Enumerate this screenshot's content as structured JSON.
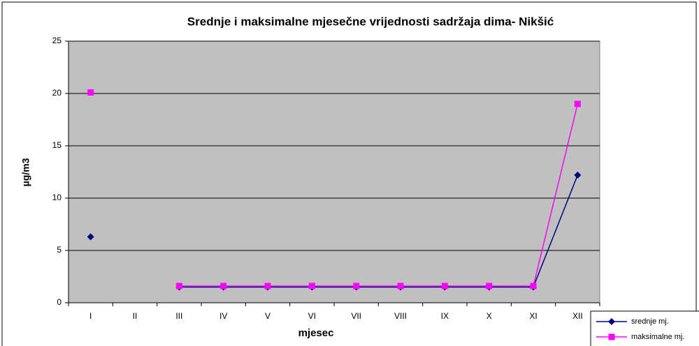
{
  "chart_data": {
    "type": "line",
    "title": "Srednje i maksimalne mjesečne vrijednosti sadržaja dima- Nikšić",
    "x_label": "mjesec",
    "y_label": "µg/m3",
    "categories": [
      "I",
      "II",
      "III",
      "IV",
      "V",
      "VI",
      "VII",
      "VIII",
      "IX",
      "X",
      "XI",
      "XII"
    ],
    "series": [
      {
        "name": "srednje mj.",
        "color": "#000080",
        "marker": "diamond",
        "values": [
          6.3,
          null,
          1.5,
          1.5,
          1.5,
          1.5,
          1.5,
          1.5,
          1.5,
          1.5,
          1.5,
          12.2
        ]
      },
      {
        "name": "maksimalne mj.",
        "color": "#ff00ff",
        "marker": "square",
        "values": [
          20.1,
          null,
          1.6,
          1.6,
          1.6,
          1.6,
          1.6,
          1.6,
          1.6,
          1.6,
          1.6,
          19.0
        ]
      }
    ],
    "ylim": [
      0,
      25
    ],
    "yticks": [
      0,
      5,
      10,
      15,
      20,
      25
    ],
    "grid": true,
    "legend": "bottom-right"
  }
}
